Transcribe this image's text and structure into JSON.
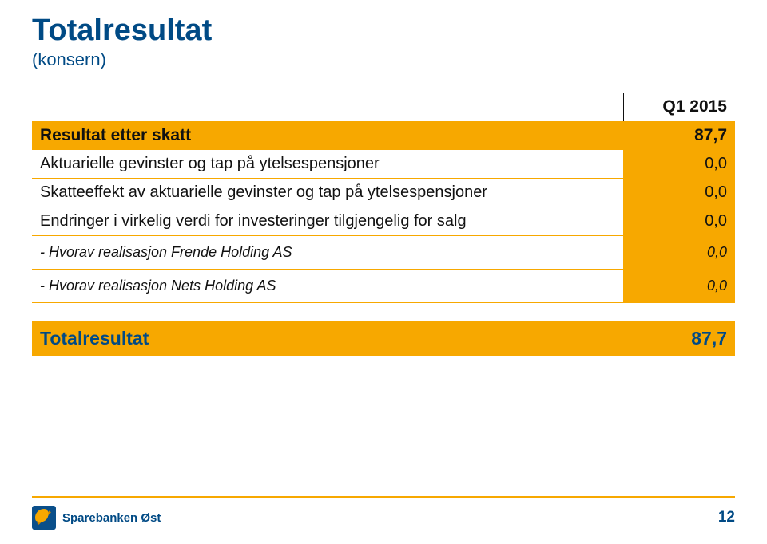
{
  "title": "Totalresultat",
  "subtitle": "(konsern)",
  "period_header": "Q1 2015",
  "rows": {
    "result_after_tax": {
      "label": "Resultat etter skatt",
      "value": "87,7"
    },
    "actuarial_gains": {
      "label": "Aktuarielle gevinster og tap på ytelsespensjoner",
      "value": "0,0"
    },
    "tax_effect": {
      "label": "Skatteeffekt av aktuarielle gevinster og tap på ytelsespensjoner",
      "value": "0,0"
    },
    "fair_value_changes": {
      "label": "Endringer i virkelig verdi for investeringer tilgjengelig for salg",
      "value": "0,0"
    },
    "frende": {
      "label": "- Hvorav realisasjon Frende Holding AS",
      "value": "0,0"
    },
    "nets": {
      "label": "- Hvorav realisasjon Nets Holding AS",
      "value": "0,0"
    }
  },
  "total": {
    "label": "Totalresultat",
    "value": "87,7"
  },
  "footer": {
    "brand": "Sparebanken Øst",
    "page_number": "12"
  },
  "colors": {
    "brand_blue": "#004a85",
    "accent_orange": "#f7a800",
    "text": "#111111",
    "background": "#ffffff"
  }
}
